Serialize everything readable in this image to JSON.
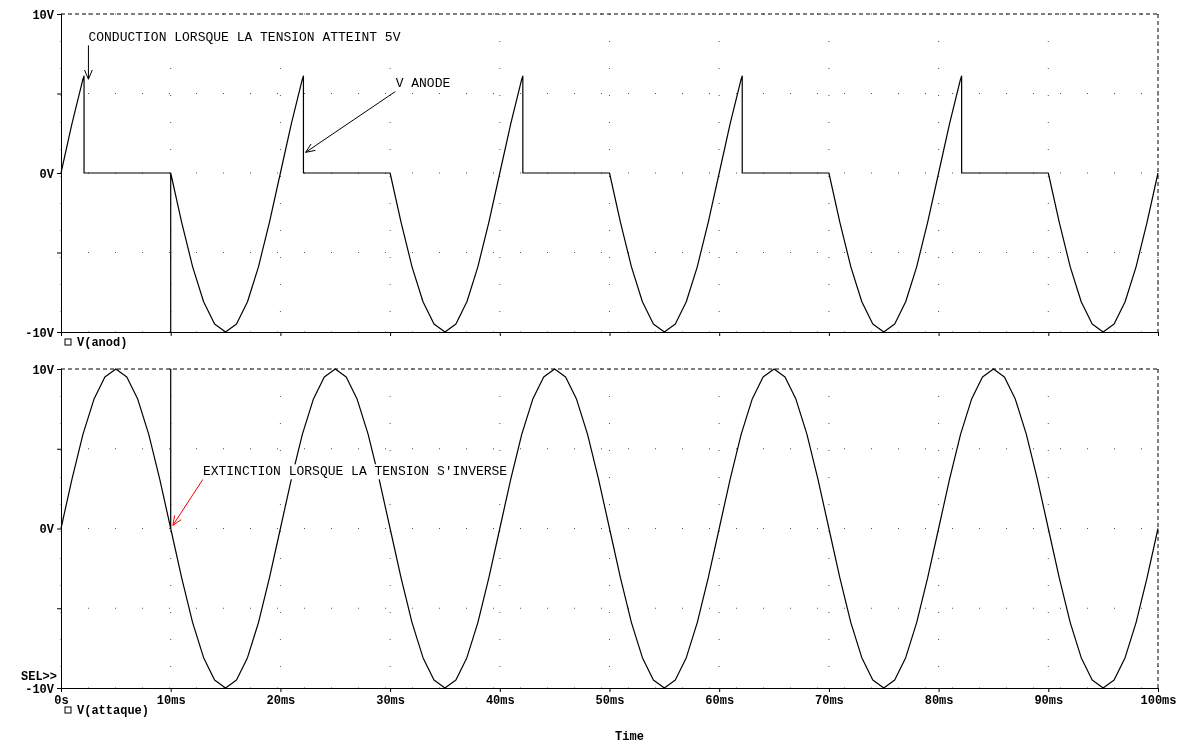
{
  "chart_data": [
    {
      "type": "line",
      "xlim": [
        0,
        100
      ],
      "ylim": [
        -10,
        10
      ],
      "xticks": [
        {
          "value": 0,
          "label": null
        },
        {
          "value": 10,
          "label": null
        },
        {
          "value": 20,
          "label": null
        },
        {
          "value": 30,
          "label": null
        },
        {
          "value": 40,
          "label": null
        },
        {
          "value": 50,
          "label": null
        },
        {
          "value": 60,
          "label": null
        },
        {
          "value": 70,
          "label": null
        },
        {
          "value": 80,
          "label": null
        },
        {
          "value": 90,
          "label": null
        },
        {
          "value": 100,
          "label": null
        }
      ],
      "yticks": [
        {
          "value": -10,
          "label": "-10V"
        },
        {
          "value": -5,
          "label": null
        },
        {
          "value": 0,
          "label": "0V"
        },
        {
          "value": 5,
          "label": null
        },
        {
          "value": 10,
          "label": "10V"
        }
      ],
      "tick_labels": "y",
      "grid": true,
      "legend": "bottom left",
      "line_style": "solid",
      "marker": "none",
      "series": [
        {
          "name": "V(anod)",
          "color": "#000000",
          "x": [
            0,
            1,
            2,
            2.1,
            2.1,
            10,
            10,
            10,
            11,
            12,
            13,
            14,
            15,
            16,
            17,
            18,
            19,
            20,
            21,
            22,
            22.1,
            22.1,
            30,
            31,
            32,
            33,
            34,
            35,
            36,
            37,
            38,
            39,
            40,
            41,
            42,
            42.1,
            42.1,
            50,
            51,
            52,
            53,
            54,
            55,
            56,
            57,
            58,
            59,
            60,
            61,
            62,
            62.1,
            62.1,
            70,
            71,
            72,
            73,
            74,
            75,
            76,
            77,
            78,
            79,
            80,
            81,
            82,
            82.1,
            82.1,
            90,
            91,
            92,
            93,
            94,
            95,
            96,
            97,
            98,
            99,
            100
          ],
          "values": [
            0,
            3.1,
            5.9,
            6.1,
            0,
            0,
            -10,
            0,
            -3.1,
            -5.9,
            -8.1,
            -9.5,
            -10,
            -9.5,
            -8.1,
            -5.9,
            -3.1,
            0,
            3.1,
            5.9,
            6.1,
            0,
            0,
            -3.1,
            -5.9,
            -8.1,
            -9.5,
            -10,
            -9.5,
            -8.1,
            -5.9,
            -3.1,
            0,
            3.1,
            5.9,
            6.1,
            0,
            0,
            -3.1,
            -5.9,
            -8.1,
            -9.5,
            -10,
            -9.5,
            -8.1,
            -5.9,
            -3.1,
            0,
            3.1,
            5.9,
            6.1,
            0,
            0,
            -3.1,
            -5.9,
            -8.1,
            -9.5,
            -10,
            -9.5,
            -8.1,
            -5.9,
            -3.1,
            0,
            3.1,
            5.9,
            6.1,
            0,
            0,
            -3.1,
            -5.9,
            -8.1,
            -9.5,
            -10,
            -9.5,
            -8.1,
            -5.9,
            -3.1,
            0
          ]
        }
      ],
      "annotations": [
        {
          "text": "CONDUCTION LORSQUE LA TENSION ATTEINT 5V",
          "x": 2.5,
          "y": 5.9
        },
        {
          "text": "V ANODE",
          "x": 22.3,
          "y": 1.3
        }
      ]
    },
    {
      "type": "line",
      "xlim": [
        0,
        100
      ],
      "ylim": [
        -10,
        10
      ],
      "xlabel": "Time",
      "xticks": [
        {
          "value": 0,
          "label": "0s"
        },
        {
          "value": 10,
          "label": "10ms"
        },
        {
          "value": 20,
          "label": "20ms"
        },
        {
          "value": 30,
          "label": "30ms"
        },
        {
          "value": 40,
          "label": "40ms"
        },
        {
          "value": 50,
          "label": "50ms"
        },
        {
          "value": 60,
          "label": "60ms"
        },
        {
          "value": 70,
          "label": "70ms"
        },
        {
          "value": 80,
          "label": "80ms"
        },
        {
          "value": 90,
          "label": "90ms"
        },
        {
          "value": 100,
          "label": "100ms"
        }
      ],
      "yticks": [
        {
          "value": -10,
          "label": "-10V"
        },
        {
          "value": -5,
          "label": null
        },
        {
          "value": 0,
          "label": "0V"
        },
        {
          "value": 5,
          "label": null
        },
        {
          "value": 10,
          "label": "10V"
        }
      ],
      "grid": true,
      "legend": "bottom left",
      "line_style": "solid",
      "marker": "none",
      "series": [
        {
          "name": "V(attaque)",
          "color": "#000000",
          "x": [
            0,
            1,
            2,
            3,
            4,
            5,
            6,
            7,
            8,
            9,
            10,
            10,
            10,
            11,
            12,
            13,
            14,
            15,
            16,
            17,
            18,
            19,
            20,
            21,
            22,
            23,
            24,
            25,
            26,
            27,
            28,
            29,
            30,
            31,
            32,
            33,
            34,
            35,
            36,
            37,
            38,
            39,
            40,
            41,
            42,
            43,
            44,
            45,
            46,
            47,
            48,
            49,
            50,
            51,
            52,
            53,
            54,
            55,
            56,
            57,
            58,
            59,
            60,
            61,
            62,
            63,
            64,
            65,
            66,
            67,
            68,
            69,
            70,
            71,
            72,
            73,
            74,
            75,
            76,
            77,
            78,
            79,
            80,
            81,
            82,
            83,
            84,
            85,
            86,
            87,
            88,
            89,
            90,
            91,
            92,
            93,
            94,
            95,
            96,
            97,
            98,
            99,
            100
          ],
          "values": [
            0,
            3.1,
            5.9,
            8.1,
            9.5,
            10,
            9.5,
            8.1,
            5.9,
            3.1,
            0,
            10,
            0,
            -3.1,
            -5.9,
            -8.1,
            -9.5,
            -10,
            -9.5,
            -8.1,
            -5.9,
            -3.1,
            0,
            3.1,
            5.9,
            8.1,
            9.5,
            10,
            9.5,
            8.1,
            5.9,
            3.1,
            0,
            -3.1,
            -5.9,
            -8.1,
            -9.5,
            -10,
            -9.5,
            -8.1,
            -5.9,
            -3.1,
            0,
            3.1,
            5.9,
            8.1,
            9.5,
            10,
            9.5,
            8.1,
            5.9,
            3.1,
            0,
            -3.1,
            -5.9,
            -8.1,
            -9.5,
            -10,
            -9.5,
            -8.1,
            -5.9,
            -3.1,
            0,
            3.1,
            5.9,
            8.1,
            9.5,
            10,
            9.5,
            8.1,
            5.9,
            3.1,
            0,
            -3.1,
            -5.9,
            -8.1,
            -9.5,
            -10,
            -9.5,
            -8.1,
            -5.9,
            -3.1,
            0,
            3.1,
            5.9,
            8.1,
            9.5,
            10,
            9.5,
            8.1,
            5.9,
            3.1,
            0,
            -3.1,
            -5.9,
            -8.1,
            -9.5,
            -10,
            -9.5,
            -8.1,
            -5.9,
            -3.1,
            0
          ]
        }
      ],
      "annotations": [
        {
          "text": "EXTINCTION LORSQUE LA TENSION S'INVERSE",
          "x": 10.2,
          "y": 0.2
        },
        "SEL>>"
      ]
    }
  ]
}
